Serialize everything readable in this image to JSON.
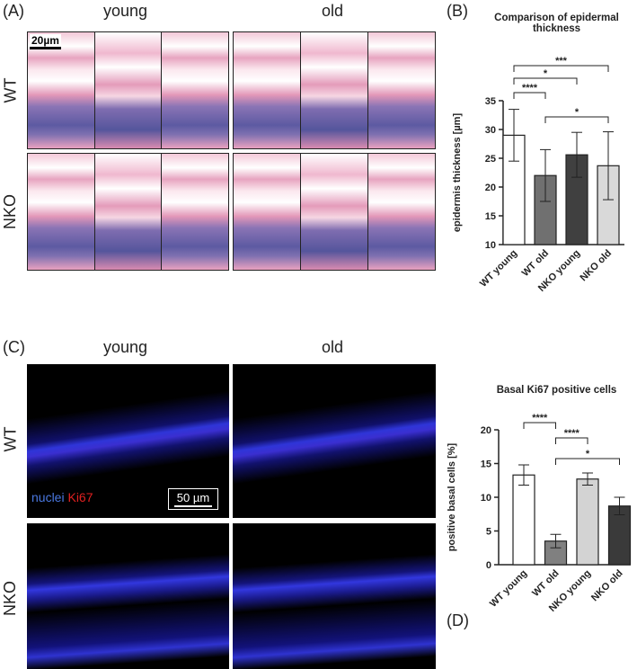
{
  "panels": {
    "a": {
      "label": "(A)",
      "col_labels": [
        "young",
        "old"
      ],
      "row_labels": [
        "WT",
        "NKO"
      ],
      "scale_bar": "20µm"
    },
    "b": {
      "label": "(B)"
    },
    "c": {
      "label": "(C)",
      "col_labels": [
        "young",
        "old"
      ],
      "row_labels": [
        "WT",
        "NKO"
      ],
      "scale_bar": "50 µm",
      "stain_labels": [
        "nuclei",
        "Ki67"
      ]
    },
    "d": {
      "label": "(D)"
    }
  },
  "chart_data": [
    {
      "type": "bar",
      "title": "Comparison of epidermal thickness",
      "y_label": "epidermis thickness [µm]",
      "categories": [
        "WT young",
        "WT old",
        "NKO young",
        "NKO old"
      ],
      "values": [
        29,
        22,
        25.6,
        23.7
      ],
      "errors": [
        4.5,
        4.5,
        3.9,
        5.9
      ],
      "colors": [
        "#ffffff",
        "#707070",
        "#404040",
        "#d9d9d9"
      ],
      "ylim": [
        10,
        35
      ],
      "yticks": [
        10,
        15,
        20,
        25,
        30,
        35
      ],
      "significance": [
        {
          "pair": [
            0,
            1
          ],
          "label": "****"
        },
        {
          "pair": [
            0,
            2
          ],
          "label": "*"
        },
        {
          "pair": [
            0,
            3
          ],
          "label": "***"
        },
        {
          "pair": [
            1,
            3
          ],
          "label": "*"
        }
      ]
    },
    {
      "type": "bar",
      "title": "Basal Ki67 positive cells",
      "y_label": "positive basal cells [%]",
      "categories": [
        "WT young",
        "WT old",
        "NKO young",
        "NKO old"
      ],
      "values": [
        13.3,
        3.5,
        12.7,
        8.7
      ],
      "errors": [
        1.5,
        1.0,
        0.9,
        1.3
      ],
      "colors": [
        "#ffffff",
        "#808080",
        "#d3d3d3",
        "#3a3a3a"
      ],
      "ylim": [
        0,
        20
      ],
      "yticks": [
        0,
        5,
        10,
        15,
        20
      ],
      "significance": [
        {
          "pair": [
            0,
            1
          ],
          "label": "****"
        },
        {
          "pair": [
            1,
            2
          ],
          "label": "****"
        },
        {
          "pair": [
            1,
            3
          ],
          "label": "*"
        }
      ]
    }
  ]
}
